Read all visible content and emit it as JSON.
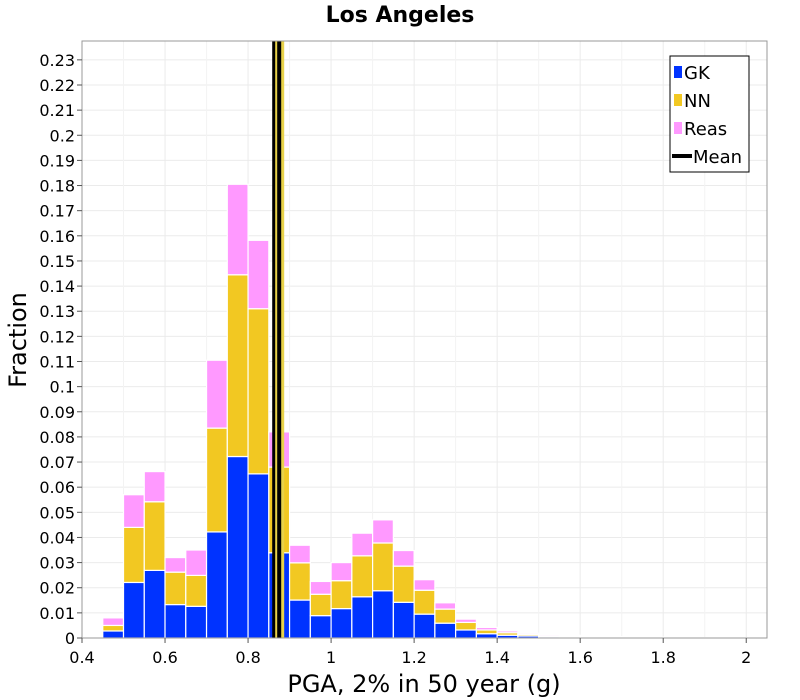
{
  "chart_data": {
    "type": "bar",
    "stacked": true,
    "title": "Los Angeles",
    "xlabel": "PGA, 2% in 50 year (g)",
    "ylabel": "Fraction",
    "xlim": [
      0.4,
      2.05
    ],
    "ylim": [
      0,
      0.2375
    ],
    "bin_width": 0.05,
    "x_ticks": [
      0.4,
      0.6,
      0.8,
      1,
      1.2,
      1.4,
      1.6,
      1.8,
      2
    ],
    "x_tick_labels": [
      "0.4",
      "0.6",
      "0.8",
      "1",
      "1.2",
      "1.4",
      "1.6",
      "1.8",
      "2"
    ],
    "y_ticks": [
      0,
      0.01,
      0.02,
      0.03,
      0.04,
      0.05,
      0.06,
      0.07,
      0.08,
      0.09,
      0.1,
      0.11,
      0.12,
      0.13,
      0.14,
      0.15,
      0.16,
      0.17,
      0.18,
      0.19,
      0.2,
      0.21,
      0.22,
      0.23
    ],
    "y_tick_labels": [
      "0",
      "0.01",
      "0.02",
      "0.03",
      "0.04",
      "0.05",
      "0.06",
      "0.07",
      "0.08",
      "0.09",
      "0.1",
      "0.11",
      "0.12",
      "0.13",
      "0.14",
      "0.15",
      "0.16",
      "0.17",
      "0.18",
      "0.19",
      "0.2",
      "0.21",
      "0.22",
      "0.23"
    ],
    "grid": true,
    "legend_position": "top-right",
    "x": [
      0.475,
      0.525,
      0.575,
      0.625,
      0.675,
      0.725,
      0.775,
      0.825,
      0.875,
      0.925,
      0.975,
      1.025,
      1.075,
      1.125,
      1.175,
      1.225,
      1.275,
      1.325,
      1.375,
      1.425,
      1.475,
      1.525,
      1.575,
      1.625,
      1.675,
      1.725,
      1.775,
      1.825,
      1.875,
      1.925,
      1.975
    ],
    "series": [
      {
        "name": "GK",
        "color": "#0033ff",
        "values": [
          0.0028,
          0.0221,
          0.0269,
          0.0133,
          0.0126,
          0.0422,
          0.0722,
          0.0653,
          0.0339,
          0.0151,
          0.0089,
          0.0117,
          0.0164,
          0.0188,
          0.0142,
          0.0095,
          0.0059,
          0.0032,
          0.0017,
          0.0011,
          0.0008,
          0.0005,
          0.0004,
          0.0003,
          0.0002,
          0.0002,
          0.0001,
          0.0001,
          0.0001,
          0.0,
          0.0
        ]
      },
      {
        "name": "NN",
        "color": "#f2c822",
        "values": [
          0.0022,
          0.0219,
          0.0273,
          0.0129,
          0.0123,
          0.0413,
          0.0723,
          0.0657,
          0.0341,
          0.0148,
          0.0085,
          0.0111,
          0.0163,
          0.019,
          0.0144,
          0.0095,
          0.0056,
          0.003,
          0.0015,
          0.001,
          0.0006,
          0.0004,
          0.0003,
          0.0002,
          0.0002,
          0.0001,
          0.0001,
          0.0001,
          0.0,
          0.0,
          0.0
        ]
      },
      {
        "name": "Reas",
        "color": "#ff99ff",
        "values": [
          0.003,
          0.013,
          0.012,
          0.0058,
          0.0101,
          0.027,
          0.036,
          0.0272,
          0.014,
          0.007,
          0.0051,
          0.0072,
          0.009,
          0.0092,
          0.0062,
          0.0042,
          0.0025,
          0.0013,
          0.001,
          0.0007,
          0.0005,
          0.0005,
          0.0004,
          0.0003,
          0.0002,
          0.0002,
          0.0002,
          0.0001,
          0.0001,
          0.0001,
          0.0001
        ]
      }
    ],
    "mean": {
      "name": "Mean",
      "x": 0.875,
      "color": "#000000",
      "band_color": "#e8d24a"
    }
  }
}
